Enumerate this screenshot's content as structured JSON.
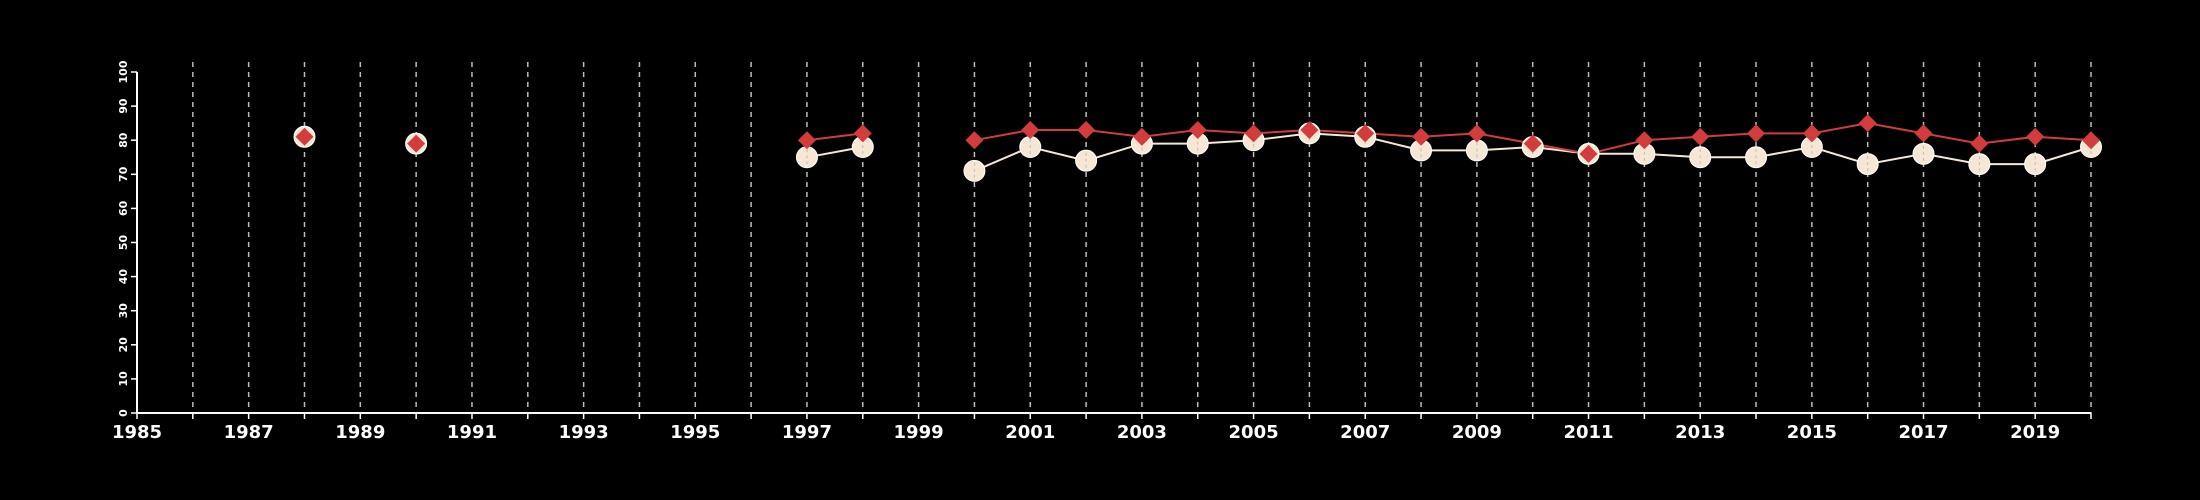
{
  "chart_data": {
    "type": "line",
    "title": "",
    "xlabel": "",
    "ylabel": "",
    "xlim": [
      1985,
      2020
    ],
    "ylim": [
      0,
      100
    ],
    "x_ticks_major": [
      1985,
      1987,
      1989,
      1991,
      1993,
      1995,
      1997,
      1999,
      2001,
      2003,
      2005,
      2007,
      2009,
      2011,
      2013,
      2015,
      2017,
      2019
    ],
    "y_ticks": [
      0,
      10,
      20,
      30,
      40,
      50,
      60,
      70,
      80,
      90,
      100
    ],
    "grid": {
      "vertical": true,
      "horizontal": false,
      "style": "dashed"
    },
    "legend": "none",
    "series": [
      {
        "color": "#f6e7d4",
        "marker": "circle",
        "points": [
          [
            1988,
            81
          ],
          [
            1990,
            79
          ],
          [
            1997,
            75
          ],
          [
            1998,
            78
          ],
          [
            2000,
            71
          ],
          [
            2001,
            78
          ],
          [
            2002,
            74
          ],
          [
            2003,
            79
          ],
          [
            2004,
            79
          ],
          [
            2005,
            80
          ],
          [
            2006,
            82
          ],
          [
            2007,
            81
          ],
          [
            2008,
            77
          ],
          [
            2009,
            77
          ],
          [
            2010,
            78
          ],
          [
            2011,
            76
          ],
          [
            2012,
            76
          ],
          [
            2013,
            75
          ],
          [
            2014,
            75
          ],
          [
            2015,
            78
          ],
          [
            2016,
            73
          ],
          [
            2017,
            76
          ],
          [
            2018,
            73
          ],
          [
            2019,
            73
          ],
          [
            2020,
            78
          ]
        ]
      },
      {
        "color": "#d23c3c",
        "marker": "diamond",
        "points": [
          [
            1988,
            81
          ],
          [
            1990,
            79
          ],
          [
            1997,
            80
          ],
          [
            1998,
            82
          ],
          [
            2000,
            80
          ],
          [
            2001,
            83
          ],
          [
            2002,
            83
          ],
          [
            2003,
            81
          ],
          [
            2004,
            83
          ],
          [
            2005,
            82
          ],
          [
            2006,
            83
          ],
          [
            2007,
            82
          ],
          [
            2008,
            81
          ],
          [
            2009,
            82
          ],
          [
            2010,
            79
          ],
          [
            2011,
            76
          ],
          [
            2012,
            80
          ],
          [
            2013,
            81
          ],
          [
            2014,
            82
          ],
          [
            2015,
            82
          ],
          [
            2016,
            85
          ],
          [
            2017,
            82
          ],
          [
            2018,
            79
          ],
          [
            2019,
            81
          ],
          [
            2020,
            80
          ]
        ]
      }
    ]
  }
}
